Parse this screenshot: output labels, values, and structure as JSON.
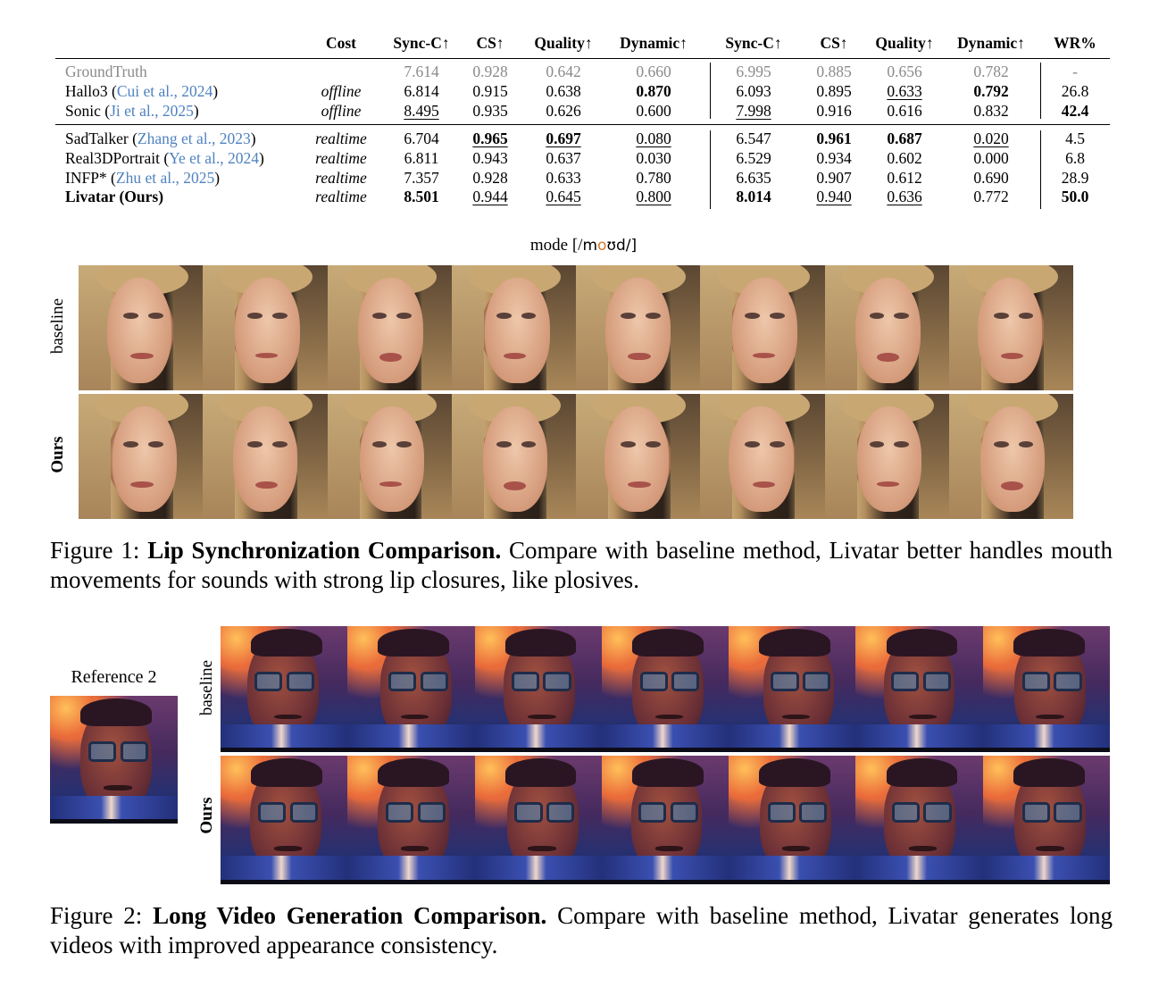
{
  "table": {
    "headers": [
      "Cost",
      "Sync-C↑",
      "CS↑",
      "Quality↑",
      "Dynamic↑",
      "Sync-C↑",
      "CS↑",
      "Quality↑",
      "Dynamic↑",
      "WR%"
    ],
    "groups": [
      {
        "rows": [
          {
            "method": "GroundTruth",
            "cite": "",
            "cost": "",
            "values": [
              "7.614",
              "0.928",
              "0.642",
              "0.660",
              "6.995",
              "0.885",
              "0.656",
              "0.782",
              "-"
            ],
            "muted": true
          },
          {
            "method": "Hallo3 (",
            "cite": "Cui et al., 2024",
            "close": ")",
            "cost": "offline",
            "values": [
              "6.814",
              "0.915",
              "0.638",
              "0.870",
              "6.093",
              "0.895",
              "0.633",
              "0.792",
              "26.8"
            ]
          },
          {
            "method": "Sonic (",
            "cite": "Ji et al., 2025",
            "close": ")",
            "cost": "offline",
            "values": [
              "8.495",
              "0.935",
              "0.626",
              "0.600",
              "7.998",
              "0.916",
              "0.616",
              "0.832",
              "42.4"
            ]
          }
        ]
      },
      {
        "rows": [
          {
            "method": "SadTalker (",
            "cite": "Zhang et al., 2023",
            "close": ")",
            "cost": "realtime",
            "values": [
              "6.704",
              "0.965",
              "0.697",
              "0.080",
              "6.547",
              "0.961",
              "0.687",
              "0.020",
              "4.5"
            ]
          },
          {
            "method": "Real3DPortrait (",
            "cite": "Ye et al., 2024",
            "close": ")",
            "cost": "realtime",
            "values": [
              "6.811",
              "0.943",
              "0.637",
              "0.030",
              "6.529",
              "0.934",
              "0.602",
              "0.000",
              "6.8"
            ]
          },
          {
            "method": "INFP* (",
            "cite": "Zhu et al., 2025",
            "close": ")",
            "cost": "realtime",
            "values": [
              "7.357",
              "0.928",
              "0.633",
              "0.780",
              "6.635",
              "0.907",
              "0.612",
              "0.690",
              "28.9"
            ]
          },
          {
            "method": "Livatar (Ours)",
            "cite": "",
            "close": "",
            "cost": "realtime",
            "values": [
              "8.501",
              "0.944",
              "0.645",
              "0.800",
              "8.014",
              "0.940",
              "0.636",
              "0.772",
              "50.0"
            ],
            "bold_method": true
          }
        ]
      }
    ],
    "bold_cells": [
      [
        1,
        3
      ],
      [
        1,
        7
      ],
      [
        2,
        8
      ],
      [
        3,
        1
      ],
      [
        3,
        2
      ],
      [
        3,
        5
      ],
      [
        3,
        6
      ],
      [
        6,
        0
      ],
      [
        6,
        4
      ],
      [
        6,
        8
      ]
    ],
    "underline_cells": [
      [
        1,
        6
      ],
      [
        2,
        0
      ],
      [
        2,
        4
      ],
      [
        3,
        1
      ],
      [
        3,
        2
      ],
      [
        3,
        3
      ],
      [
        3,
        7
      ],
      [
        6,
        1
      ],
      [
        6,
        2
      ],
      [
        6,
        3
      ],
      [
        6,
        5
      ],
      [
        6,
        6
      ]
    ]
  },
  "figure1": {
    "phoneme_word": "mode [/",
    "phoneme_pre": "m",
    "phoneme_highlight": "o",
    "phoneme_post": "ʊd/]",
    "row_labels": [
      "baseline",
      "Ours"
    ],
    "frames_per_row": 8,
    "caption_prefix": "Figure 1: ",
    "caption_bold": "Lip Synchronization Comparison.",
    "caption_text": " Compare with baseline method, Livatar better handles mouth movements for sounds with strong lip closures, like plosives."
  },
  "figure2": {
    "reference_label": "Reference 2",
    "row_labels": [
      "baseline",
      "Ours"
    ],
    "frames_per_row": 7,
    "caption_prefix": "Figure 2: ",
    "caption_bold": "Long Video Generation Comparison.",
    "caption_text": " Compare with baseline method, Livatar generates long videos with improved appearance consistency."
  }
}
